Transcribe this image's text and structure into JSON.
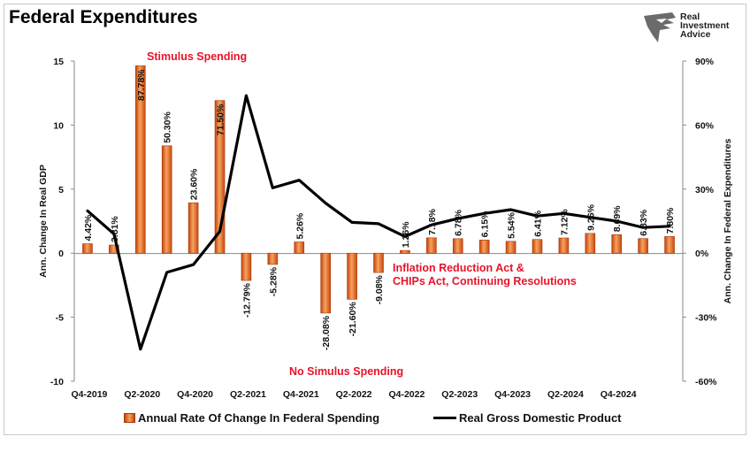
{
  "title": "Federal Expenditures",
  "logo": {
    "lines": [
      "Real",
      "Investment",
      "Advice"
    ]
  },
  "chart_data": {
    "type": "bar",
    "title": "Federal Expenditures",
    "left_axis": {
      "label": "Ann. Change In Real GDP",
      "ticks": [
        "15",
        "10",
        "5",
        "0",
        "-5",
        "-10"
      ],
      "range": [
        -10,
        15
      ]
    },
    "right_axis": {
      "label": "Ann. Change In Federal Expenditures",
      "ticks": [
        "90%",
        "60%",
        "30%",
        "0%",
        "-30%",
        "-60%"
      ],
      "range": [
        -60,
        90
      ]
    },
    "x_tick_labels": [
      "Q4-2019",
      "Q2-2020",
      "Q4-2020",
      "Q2-2021",
      "Q4-2021",
      "Q2-2022",
      "Q4-2022",
      "Q2-2023",
      "Q4-2023",
      "Q2-2024",
      "Q4-2024"
    ],
    "categories": [
      "Q4-2019",
      "Q1-2020",
      "Q2-2020",
      "Q3-2020",
      "Q4-2020",
      "Q1-2021",
      "Q2-2021",
      "Q3-2021",
      "Q4-2021",
      "Q1-2022",
      "Q2-2022",
      "Q3-2022",
      "Q4-2022",
      "Q1-2023",
      "Q2-2023",
      "Q3-2023",
      "Q4-2023",
      "Q1-2024",
      "Q2-2024",
      "Q3-2024",
      "Q4-2024",
      "Q1-2025",
      "Q2-2025"
    ],
    "series": [
      {
        "name": "Annual Rate Of Change In Federal Spending",
        "kind": "bar",
        "axis": "right",
        "color": "#e36414",
        "values": [
          4.42,
          3.81,
          87.78,
          50.3,
          23.6,
          71.5,
          -12.79,
          -5.28,
          5.26,
          -28.08,
          -21.6,
          -9.08,
          1.26,
          7.18,
          6.78,
          6.15,
          5.54,
          6.41,
          7.12,
          9.26,
          8.69,
          6.83,
          7.8
        ],
        "labels": [
          "4.42%",
          "3.81%",
          "87.78%",
          "50.30%",
          "23.60%",
          "71.50%",
          "-12.79%",
          "-5.28%",
          "5.26%",
          "-28.08%",
          "-21.60%",
          "-9.08%",
          "1.26%",
          "7.18%",
          "6.78%",
          "6.15%",
          "5.54%",
          "6.41%",
          "7.12%",
          "9.26%",
          "8.69%",
          "6.83%",
          "7.80%"
        ]
      },
      {
        "name": "Real Gross Domestic Product",
        "kind": "line",
        "axis": "left",
        "color": "#000000",
        "values": [
          3.3,
          1.5,
          -7.5,
          -1.5,
          -0.9,
          1.7,
          12.3,
          5.1,
          5.7,
          3.9,
          2.4,
          2.3,
          1.3,
          2.2,
          2.7,
          3.1,
          3.4,
          2.9,
          3.1,
          2.8,
          2.5,
          2.0,
          2.1
        ]
      }
    ],
    "annotations": [
      "Stimulus Spending",
      "No Simulus Spending",
      "Inflation Reduction Act &",
      "CHIPs Act, Continuing Resolutions"
    ],
    "grid": false,
    "legend": "bottom"
  }
}
